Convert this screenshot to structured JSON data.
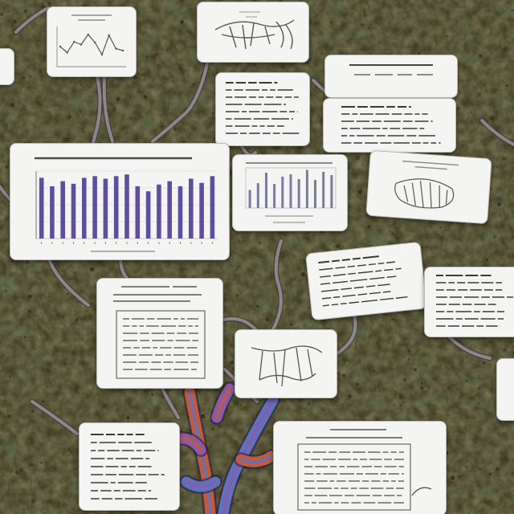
{
  "scene": {
    "ground_color": "#3d3a22",
    "moss_colors": [
      "#5d5a34",
      "#2c2a17",
      "#6a6a3e",
      "#4a5530",
      "#23301b"
    ],
    "root_color": "#9a8f9e",
    "branch_colors": [
      "#c25a3c",
      "#5e72c0",
      "#8a5aa6"
    ],
    "card_color": "#f4f4f2",
    "ink_color": "#3a3a3a"
  },
  "chart_data": [
    {
      "type": "bar",
      "values": [
        72,
        62,
        68,
        65,
        72,
        74,
        71,
        74,
        76,
        62,
        56,
        64,
        68,
        62,
        71,
        66,
        74
      ],
      "bar_color": "#5f4ea0"
    },
    {
      "type": "bar",
      "values": [
        45,
        62,
        88,
        60,
        78,
        84,
        72,
        95,
        70,
        90,
        82
      ],
      "bar_color": "#7a7aa0"
    },
    {
      "type": "line",
      "values": [
        50,
        35,
        62,
        55,
        80,
        60,
        30,
        78,
        45,
        40
      ]
    }
  ]
}
